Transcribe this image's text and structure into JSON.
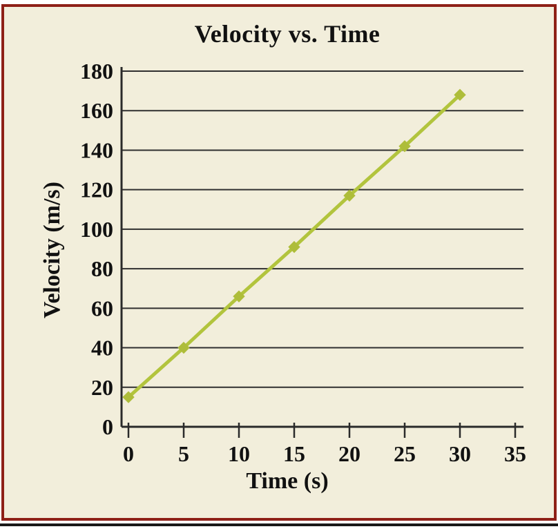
{
  "chart_data": {
    "type": "line",
    "title": "Velocity vs. Time",
    "xlabel": "Time (s)",
    "ylabel": "Velocity (m/s)",
    "x": [
      0,
      5,
      10,
      15,
      20,
      25,
      30
    ],
    "values": [
      15,
      40,
      66,
      91,
      117,
      142,
      168
    ],
    "xlim": [
      0,
      35
    ],
    "ylim": [
      0,
      180
    ],
    "xticks": [
      0,
      5,
      10,
      15,
      20,
      25,
      30,
      35
    ],
    "yticks": [
      0,
      20,
      40,
      60,
      80,
      100,
      120,
      140,
      160,
      180
    ],
    "grid": "horizontal",
    "legend": "none",
    "marker": "diamond",
    "style": {
      "line_color": "#b2c43d",
      "marker_color": "#aebd3a",
      "axis_color": "#2a2a2a",
      "grid_color": "#2f2f2f",
      "text_color": "#111111",
      "background": "#f2eedb",
      "border_color": "#8e2017"
    }
  }
}
